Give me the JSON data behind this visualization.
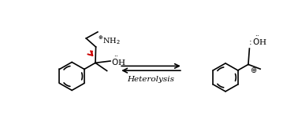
{
  "background_color": "#ffffff",
  "heterolysis_label": "Heterolysis",
  "font_color": "#000000",
  "red_arrow_color": "#cc0000",
  "fig_width": 3.78,
  "fig_height": 1.47,
  "dpi": 100,
  "xlim": [
    0,
    10
  ],
  "ylim": [
    0,
    3.9
  ]
}
